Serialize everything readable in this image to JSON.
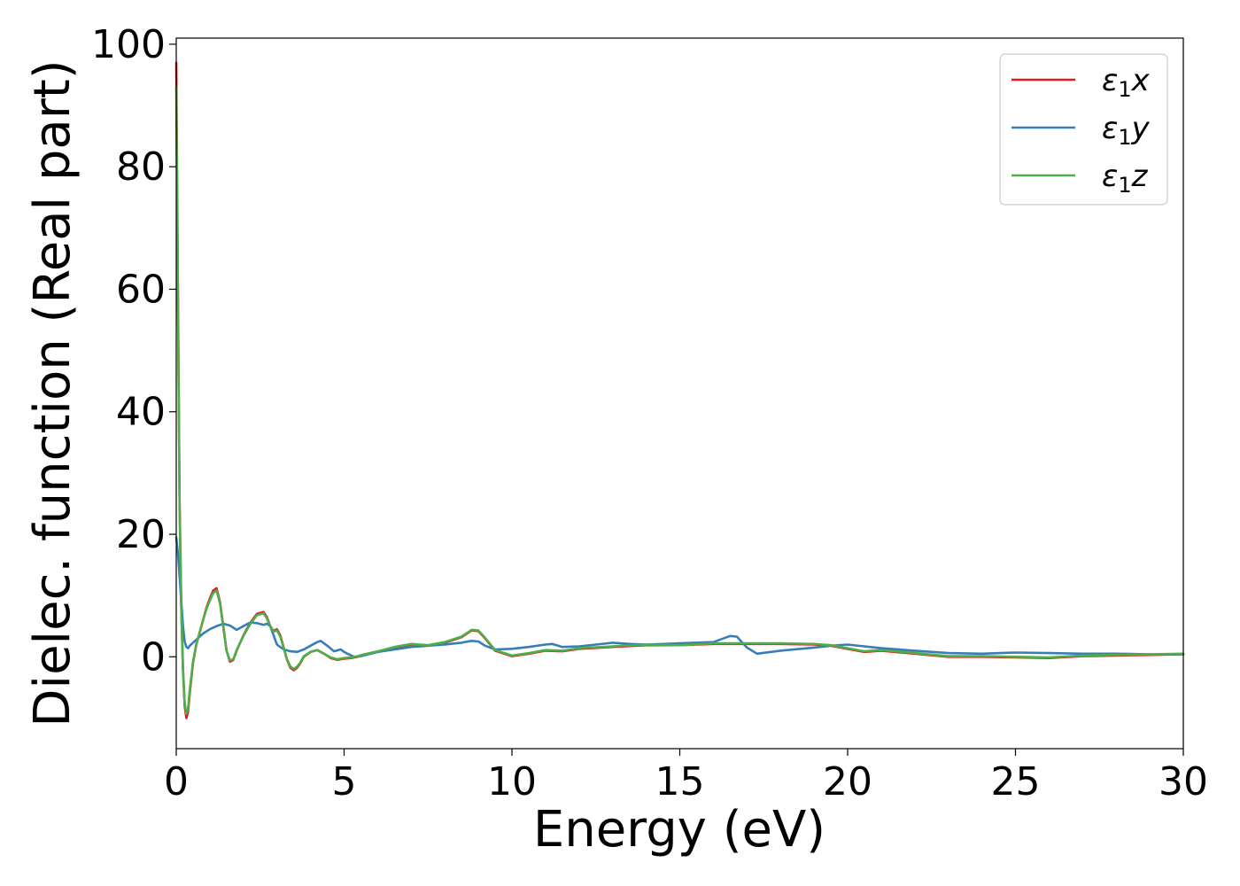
{
  "chart_data": {
    "type": "line",
    "title": "",
    "xlabel": "Energy (eV)",
    "ylabel": "Dielec. function (Real part)",
    "xlim": [
      0,
      30
    ],
    "ylim": [
      -15,
      101
    ],
    "xticks": [
      "0",
      "5",
      "10",
      "15",
      "20",
      "25",
      "30"
    ],
    "yticks": [
      "0",
      "20",
      "40",
      "60",
      "80",
      "100"
    ],
    "grid": false,
    "legend_position": "top-right",
    "series": [
      {
        "name": "ε₁x",
        "legend": {
          "symbol": "ε",
          "sub": "1",
          "var": "x"
        },
        "color": "#e41a1c",
        "x": [
          0,
          0.05,
          0.1,
          0.15,
          0.2,
          0.25,
          0.3,
          0.35,
          0.4,
          0.5,
          0.6,
          0.7,
          0.8,
          0.9,
          1.0,
          1.1,
          1.2,
          1.3,
          1.4,
          1.5,
          1.6,
          1.7,
          1.8,
          2.0,
          2.2,
          2.4,
          2.6,
          2.7,
          2.8,
          2.9,
          3.0,
          3.1,
          3.2,
          3.3,
          3.4,
          3.5,
          3.6,
          3.7,
          3.8,
          4.0,
          4.2,
          4.4,
          4.6,
          4.8,
          5.0,
          5.2,
          5.4,
          5.6,
          6.0,
          6.5,
          7.0,
          7.5,
          8.0,
          8.5,
          8.8,
          9.0,
          9.2,
          9.5,
          10.0,
          10.5,
          11.0,
          11.5,
          12.0,
          13.0,
          14.0,
          15.0,
          16.0,
          17.0,
          18.0,
          19.0,
          19.5,
          20.0,
          20.5,
          21.0,
          22.0,
          23.0,
          24.0,
          25.0,
          26.0,
          27.0,
          28.0,
          29.0,
          30.0
        ],
        "y": [
          97,
          60,
          25,
          8,
          -2,
          -8,
          -10,
          -9,
          -6,
          -1,
          2,
          4,
          6,
          8,
          9.5,
          10.8,
          11.2,
          9,
          5,
          1,
          -0.8,
          -0.5,
          1,
          3.5,
          5.5,
          7,
          7.3,
          6.5,
          5,
          4.2,
          4.5,
          3.5,
          1.5,
          -0.5,
          -1.8,
          -2.2,
          -1.8,
          -1,
          0,
          0.8,
          1.1,
          0.5,
          -0.2,
          -0.5,
          -0.3,
          -0.2,
          0,
          0.3,
          0.8,
          1.5,
          2,
          1.8,
          2.3,
          3.2,
          4.3,
          4.2,
          3,
          1,
          0.1,
          0.5,
          1,
          0.9,
          1.3,
          1.6,
          1.9,
          1.9,
          2.1,
          2.1,
          2.1,
          2,
          1.8,
          1.3,
          0.8,
          1,
          0.5,
          0,
          0,
          -0.1,
          -0.2,
          0.1,
          0.2,
          0.3,
          0.4
        ]
      },
      {
        "name": "ε₁y",
        "legend": {
          "symbol": "ε",
          "sub": "1",
          "var": "y"
        },
        "color": "#377eb8",
        "x": [
          0,
          0.05,
          0.1,
          0.15,
          0.2,
          0.25,
          0.3,
          0.35,
          0.4,
          0.6,
          0.8,
          1.0,
          1.2,
          1.4,
          1.6,
          1.8,
          2.0,
          2.2,
          2.4,
          2.6,
          2.7,
          2.8,
          3.0,
          3.2,
          3.4,
          3.6,
          3.8,
          4.0,
          4.2,
          4.3,
          4.5,
          4.7,
          4.9,
          5.0,
          5.1,
          5.3,
          5.5,
          6.0,
          7.0,
          8.0,
          8.5,
          8.8,
          9.0,
          9.2,
          9.5,
          10.0,
          10.5,
          11.0,
          11.2,
          11.5,
          12.0,
          12.5,
          13.0,
          13.5,
          14.0,
          15.0,
          16.0,
          16.5,
          16.7,
          17.0,
          17.3,
          18.0,
          19.0,
          19.5,
          20.0,
          21.0,
          22.0,
          23.0,
          24.0,
          25.0,
          26.0,
          27.0,
          28.0,
          29.0,
          30.0
        ],
        "y": [
          19.5,
          17,
          13,
          9,
          5,
          2.5,
          1.6,
          1.4,
          1.8,
          2.8,
          3.8,
          4.5,
          5,
          5.4,
          5.1,
          4.4,
          5,
          5.6,
          5.5,
          5.2,
          5.4,
          5,
          2,
          1.2,
          0.9,
          0.8,
          1.2,
          1.8,
          2.4,
          2.6,
          1.8,
          0.9,
          1.2,
          0.8,
          0.5,
          0,
          0.1,
          0.8,
          1.6,
          2,
          2.3,
          2.6,
          2.5,
          1.8,
          1.2,
          1.3,
          1.6,
          2,
          2.1,
          1.6,
          1.7,
          2,
          2.3,
          2.1,
          2,
          2.2,
          2.4,
          3.4,
          3.3,
          1.5,
          0.5,
          1,
          1.5,
          1.8,
          2,
          1.4,
          1,
          0.6,
          0.5,
          0.7,
          0.6,
          0.5,
          0.5,
          0.4,
          0.4
        ]
      },
      {
        "name": "ε₁z",
        "legend": {
          "symbol": "ε",
          "sub": "1",
          "var": "z"
        },
        "color": "#4daf4a",
        "x": [
          0,
          0.05,
          0.1,
          0.15,
          0.2,
          0.25,
          0.3,
          0.35,
          0.4,
          0.5,
          0.6,
          0.7,
          0.8,
          0.9,
          1.0,
          1.1,
          1.2,
          1.3,
          1.4,
          1.5,
          1.6,
          1.7,
          1.8,
          2.0,
          2.2,
          2.4,
          2.6,
          2.7,
          2.8,
          2.9,
          3.0,
          3.1,
          3.2,
          3.3,
          3.4,
          3.5,
          3.6,
          3.7,
          3.8,
          4.0,
          4.2,
          4.4,
          4.6,
          4.8,
          5.0,
          5.2,
          5.4,
          5.6,
          6.0,
          6.5,
          7.0,
          7.5,
          8.0,
          8.5,
          8.8,
          9.0,
          9.2,
          9.5,
          10.0,
          10.5,
          11.0,
          11.5,
          12.0,
          13.0,
          14.0,
          15.0,
          16.0,
          17.0,
          18.0,
          19.0,
          19.5,
          20.0,
          20.5,
          21.0,
          22.0,
          23.0,
          24.0,
          25.0,
          26.0,
          27.0,
          28.0,
          29.0,
          30.0
        ],
        "y": [
          93,
          58,
          24,
          7.5,
          -2,
          -7.5,
          -9.3,
          -8.5,
          -5.5,
          -0.8,
          2.1,
          4,
          6,
          7.8,
          9.2,
          10.4,
          10.8,
          8.8,
          4.8,
          1,
          -0.6,
          -0.4,
          1.1,
          3.4,
          5.3,
          6.8,
          7.1,
          6.3,
          4.9,
          4.1,
          4.3,
          3.3,
          1.4,
          -0.4,
          -1.6,
          -2,
          -1.6,
          -0.9,
          0.1,
          0.8,
          1.1,
          0.5,
          -0.1,
          -0.4,
          -0.2,
          -0.1,
          0.1,
          0.4,
          0.9,
          1.6,
          2.1,
          1.9,
          2.4,
          3.3,
          4.4,
          4.3,
          3.1,
          1.1,
          0.2,
          0.6,
          1.1,
          1,
          1.4,
          1.7,
          2,
          1.9,
          2.2,
          2.2,
          2.2,
          2.1,
          1.9,
          1.4,
          0.9,
          1.1,
          0.6,
          0.1,
          0.1,
          0,
          -0.1,
          0.2,
          0.3,
          0.4,
          0.5
        ]
      }
    ]
  }
}
